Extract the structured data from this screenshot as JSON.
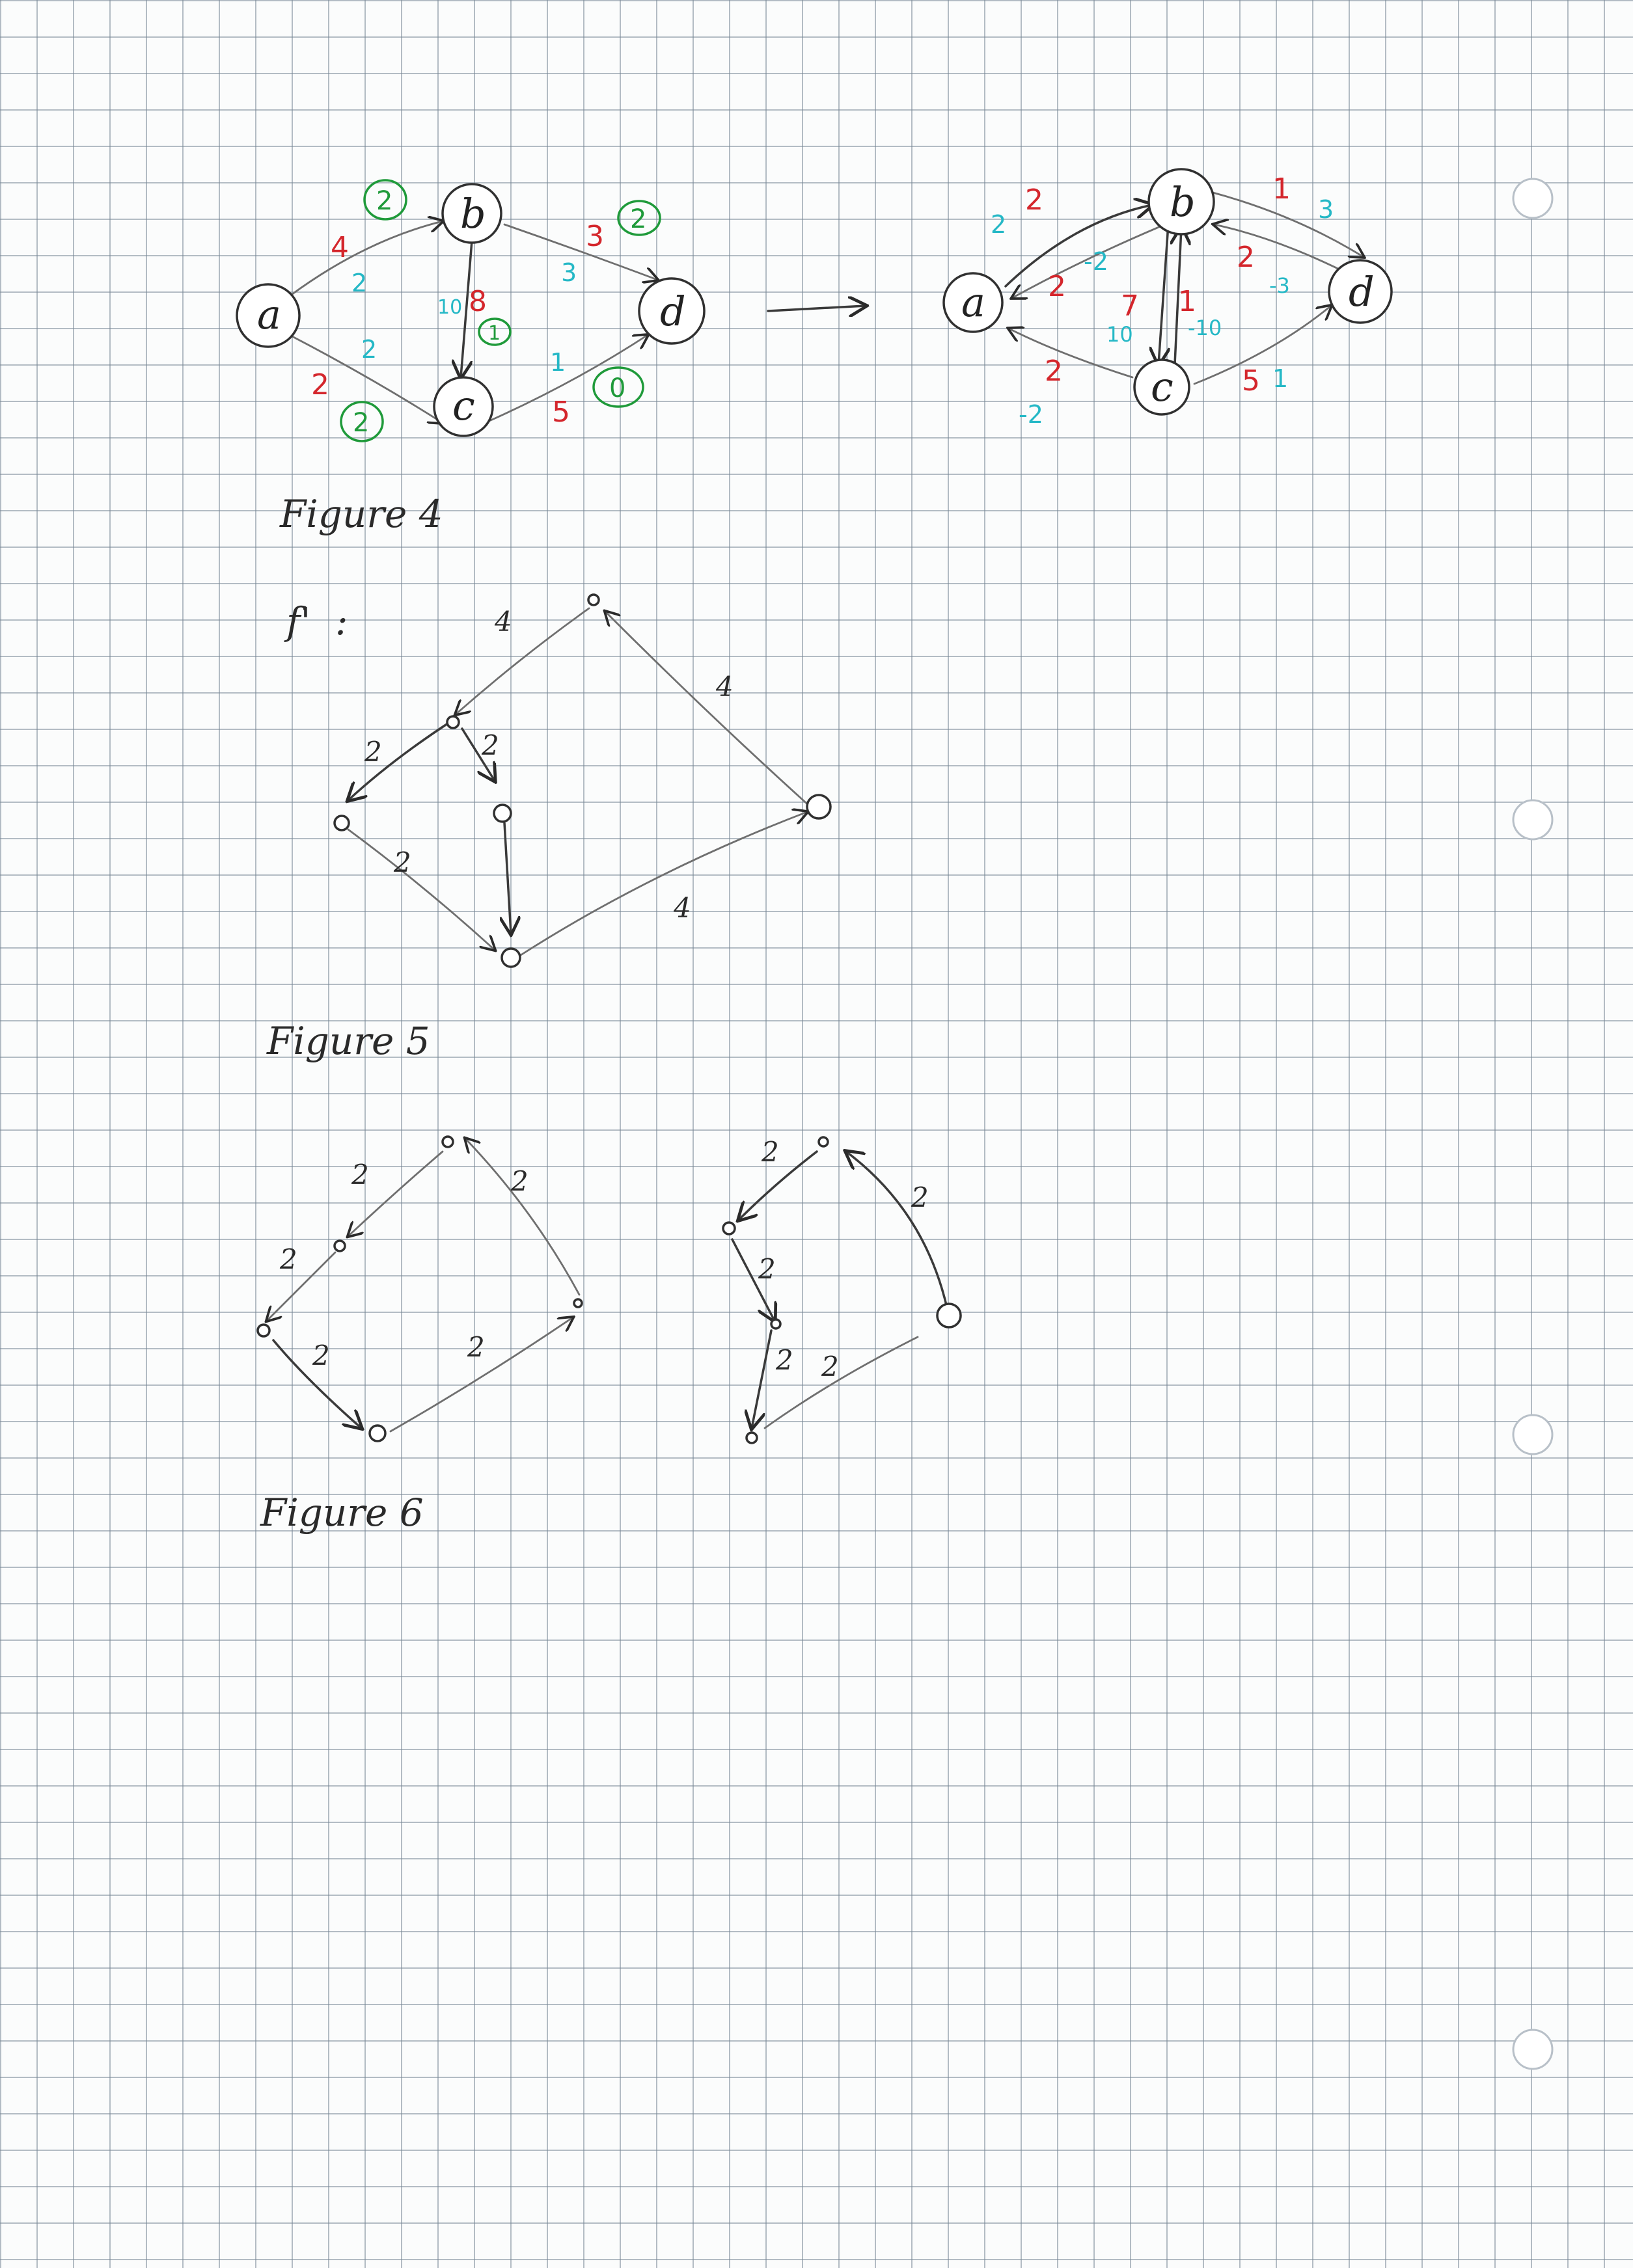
{
  "figure4": {
    "caption": "Figure 4",
    "left_graph": {
      "nodes": [
        "a",
        "b",
        "c",
        "d"
      ],
      "labels": {
        "ab_red": "4",
        "ab_cyan": "2",
        "ab_green": "2",
        "ac_red": "2",
        "ac_cyan": "2",
        "ac_green": "2",
        "bc_red": "8",
        "bc_cyan": "10",
        "bc_green": "1",
        "bd_red": "3",
        "bd_cyan": "3",
        "bd_green": "2",
        "cd_red": "5",
        "cd_cyan": "1",
        "cd_green": "0"
      }
    },
    "right_graph": {
      "nodes": [
        "a",
        "b",
        "c",
        "d"
      ],
      "labels": {
        "ab_red": "2",
        "ab_cyan": "2",
        "ba_red": "2",
        "ba_cyan": "-2",
        "ca_red": "2",
        "ca_cyan": "-2",
        "bc_red": "7",
        "bc_cyan": "10",
        "cb_red": "1",
        "cb_cyan": "-10",
        "bd_red": "1",
        "bd_cyan": "3",
        "db_red": "2",
        "db_cyan": "-3",
        "cd_red": "5",
        "cd_cyan": "1"
      }
    }
  },
  "figure5": {
    "caption": "Figure 5",
    "flow_label": "f'",
    "weights": [
      "4",
      "4",
      "2",
      "2",
      "2",
      "4"
    ]
  },
  "figure6": {
    "caption": "Figure 6",
    "left_weights": [
      "2",
      "2",
      "2",
      "2",
      "2"
    ],
    "right_weights": [
      "2",
      "2",
      "2",
      "2",
      "2"
    ]
  },
  "colors": {
    "ink": "#2a2a2a",
    "red": "#d4262c",
    "cyan": "#25b8c6",
    "green": "#1f9a3a",
    "grid": "#7f8b96"
  }
}
